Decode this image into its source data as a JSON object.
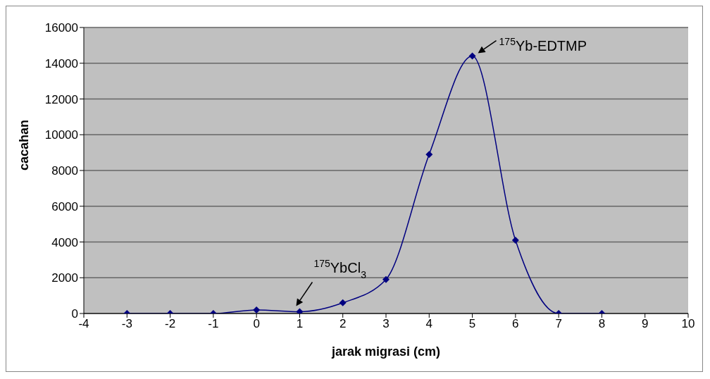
{
  "chart_data": {
    "type": "line",
    "xlabel": "jarak migrasi (cm)",
    "ylabel": "cacahan",
    "x": [
      -3,
      -2,
      -1,
      0,
      1,
      2,
      3,
      4,
      5,
      6,
      7,
      8
    ],
    "series": [
      {
        "color": "#000080",
        "values": [
          0,
          0,
          0,
          200,
          100,
          600,
          1900,
          8900,
          14400,
          4100,
          0,
          0
        ]
      }
    ],
    "xlim": [
      -4,
      10
    ],
    "xticks": [
      -4,
      -3,
      -2,
      -1,
      0,
      1,
      2,
      3,
      4,
      5,
      6,
      7,
      8,
      9,
      10
    ],
    "ylim": [
      0,
      16000
    ],
    "yticks": [
      0,
      2000,
      4000,
      6000,
      8000,
      10000,
      12000,
      14000,
      16000
    ],
    "grid": "y",
    "marker": "diamond",
    "legend": false,
    "annotations": [
      {
        "text": "$^{175}$Yb-EDTMP",
        "x": 5,
        "y": 14400
      },
      {
        "text": "$^{175}$YbCl$_{3}$",
        "x": 1,
        "y": 100
      }
    ]
  }
}
